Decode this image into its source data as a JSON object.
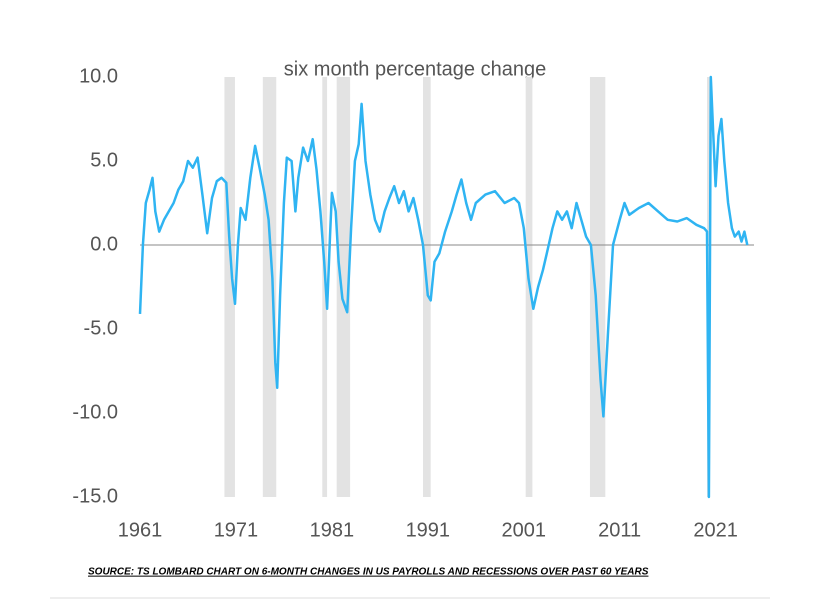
{
  "chart_data": {
    "type": "line",
    "title": "six month percentage change",
    "source": "SOURCE: TS LOMBARD CHART ON 6-MONTH CHANGES IN US PAYROLLS AND RECESSIONS OVER PAST 60 YEARS",
    "xlim": [
      1961,
      2025
    ],
    "xticks": [
      1961,
      1971,
      1981,
      1991,
      2001,
      2011,
      2021
    ],
    "ylim": [
      -15,
      10
    ],
    "yticks": [
      {
        "value": 10,
        "label": "10.0"
      },
      {
        "value": 5,
        "label": "5.0"
      },
      {
        "value": 0,
        "label": "0.0"
      },
      {
        "value": -5,
        "label": "-5.0"
      },
      {
        "value": -10,
        "label": "-10.0"
      },
      {
        "value": -15,
        "label": "-15.0"
      }
    ],
    "recession_color": "#e3e3e3",
    "recessions": [
      [
        1969.8,
        1970.9
      ],
      [
        1973.8,
        1975.2
      ],
      [
        1980.0,
        1980.5
      ],
      [
        1981.5,
        1982.9
      ],
      [
        1990.5,
        1991.3
      ],
      [
        2001.2,
        2001.9
      ],
      [
        2007.9,
        2009.5
      ],
      [
        2020.1,
        2020.4
      ]
    ],
    "series": [
      {
        "color": "#2fb4f2",
        "x": [
          1961.0,
          1961.3,
          1961.6,
          1962.0,
          1962.3,
          1962.6,
          1963.0,
          1963.5,
          1964.0,
          1964.5,
          1965.0,
          1965.5,
          1966.0,
          1966.5,
          1967.0,
          1967.5,
          1968.0,
          1968.5,
          1969.0,
          1969.5,
          1970.0,
          1970.3,
          1970.6,
          1970.9,
          1971.2,
          1971.5,
          1972.0,
          1972.5,
          1973.0,
          1973.5,
          1974.0,
          1974.4,
          1974.8,
          1975.1,
          1975.3,
          1975.6,
          1976.0,
          1976.3,
          1976.8,
          1977.2,
          1977.5,
          1978.0,
          1978.5,
          1979.0,
          1979.4,
          1979.8,
          1980.2,
          1980.5,
          1980.8,
          1981.0,
          1981.4,
          1981.7,
          1982.1,
          1982.6,
          1983.0,
          1983.4,
          1983.8,
          1984.1,
          1984.5,
          1985.0,
          1985.5,
          1986.0,
          1986.5,
          1987.0,
          1987.5,
          1988.0,
          1988.5,
          1989.0,
          1989.5,
          1990.0,
          1990.5,
          1991.0,
          1991.3,
          1991.7,
          1992.2,
          1992.8,
          1993.5,
          1994.0,
          1994.5,
          1995.0,
          1995.5,
          1996.0,
          1997.0,
          1998.0,
          1999.0,
          2000.0,
          2000.5,
          2001.0,
          2001.5,
          2002.0,
          2002.5,
          2003.0,
          2003.4,
          2004.0,
          2004.5,
          2005.0,
          2005.5,
          2006.0,
          2006.5,
          2007.0,
          2007.5,
          2008.0,
          2008.5,
          2009.0,
          2009.3,
          2009.8,
          2010.3,
          2011.0,
          2011.5,
          2012.0,
          2013.0,
          2014.0,
          2015.0,
          2016.0,
          2017.0,
          2018.0,
          2019.0,
          2019.8,
          2020.1,
          2020.3,
          2020.5,
          2020.8,
          2021.0,
          2021.3,
          2021.6,
          2021.9,
          2022.3,
          2022.7,
          2023.0,
          2023.4,
          2023.7,
          2024.0,
          2024.3
        ],
        "values": [
          -4.1,
          0,
          2.5,
          3.3,
          4.0,
          2.0,
          0.8,
          1.5,
          2.0,
          2.5,
          3.3,
          3.8,
          5.0,
          4.6,
          5.2,
          3.0,
          0.7,
          2.8,
          3.8,
          4.0,
          3.7,
          0.5,
          -2.0,
          -3.5,
          0,
          2.2,
          1.5,
          4.0,
          5.9,
          4.5,
          3.0,
          1.5,
          -2.0,
          -7.0,
          -8.5,
          -3.0,
          2.5,
          5.2,
          5.0,
          2.0,
          4.0,
          5.8,
          5.0,
          6.3,
          4.5,
          2.0,
          -1.0,
          -3.8,
          0.5,
          3.1,
          2.0,
          -1.0,
          -3.2,
          -4.0,
          1.0,
          5.0,
          6.0,
          8.4,
          5.0,
          3.0,
          1.5,
          0.8,
          2.0,
          2.8,
          3.5,
          2.5,
          3.2,
          2.0,
          2.8,
          1.5,
          0,
          -3.0,
          -3.3,
          -1.0,
          -0.5,
          0.8,
          2.0,
          3.0,
          3.9,
          2.5,
          1.5,
          2.5,
          3.0,
          3.2,
          2.5,
          2.8,
          2.5,
          1.0,
          -2.0,
          -3.8,
          -2.5,
          -1.5,
          -0.5,
          1.0,
          2.0,
          1.5,
          2.0,
          1.0,
          2.5,
          1.5,
          0.5,
          0,
          -3,
          -8,
          -10.2,
          -5,
          0,
          1.5,
          2.5,
          1.8,
          2.2,
          2.5,
          2.0,
          1.5,
          1.4,
          1.6,
          1.2,
          1.0,
          0.8,
          -15.0,
          10.0,
          6.0,
          3.5,
          6.5,
          7.5,
          5.0,
          2.5,
          1.0,
          0.5,
          0.8,
          0.2,
          0.8,
          0
        ]
      }
    ]
  }
}
